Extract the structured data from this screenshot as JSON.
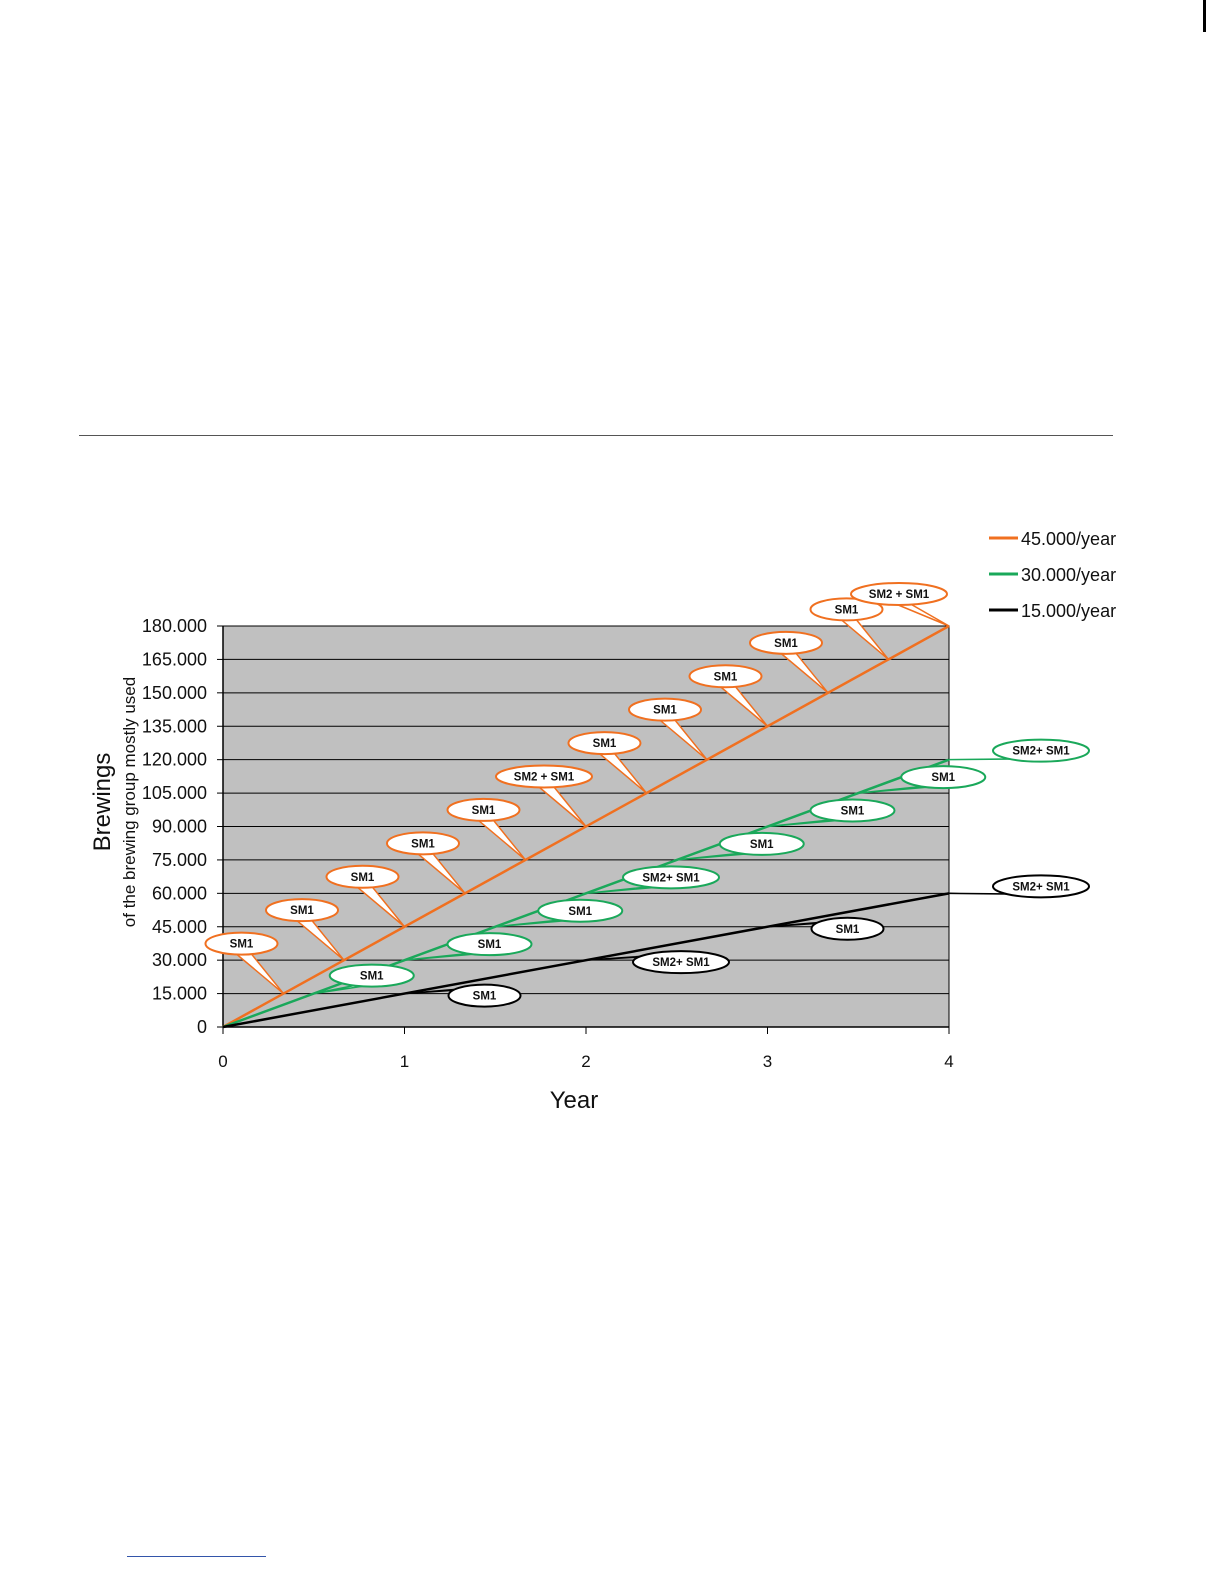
{
  "chart_data": {
    "type": "line",
    "xlabel": "Year",
    "ylabel": "Brewings",
    "ylabel_sub": "of the brewing group mostly used",
    "xlim": [
      0,
      4
    ],
    "ylim": [
      0,
      180000
    ],
    "x_ticks": [
      0,
      1,
      2,
      3,
      4
    ],
    "x_tick_labels": [
      "0",
      "1",
      "2",
      "3",
      "4"
    ],
    "y_ticks": [
      0,
      15000,
      30000,
      45000,
      60000,
      75000,
      90000,
      105000,
      120000,
      135000,
      150000,
      165000,
      180000
    ],
    "y_tick_labels": [
      "0",
      "15.000",
      "30.000",
      "45.000",
      "60.000",
      "75.000",
      "90.000",
      "105.000",
      "120.000",
      "135.000",
      "150.000",
      "165.000",
      "180.000"
    ],
    "grid": true,
    "plot_background": "#c0c0c0",
    "legend_position": "top-right",
    "series": [
      {
        "name": "45.000/year",
        "color": "#f07020",
        "x": [
          0,
          4
        ],
        "y": [
          0,
          180000
        ],
        "callouts": [
          {
            "label": "SM1",
            "x": 0.3333,
            "y": 15000
          },
          {
            "label": "SM1",
            "x": 0.6667,
            "y": 30000
          },
          {
            "label": "SM1",
            "x": 1.0,
            "y": 45000
          },
          {
            "label": "SM1",
            "x": 1.3333,
            "y": 60000
          },
          {
            "label": "SM1",
            "x": 1.6667,
            "y": 75000
          },
          {
            "label": "SM2 + SM1",
            "x": 2.0,
            "y": 90000
          },
          {
            "label": "SM1",
            "x": 2.3333,
            "y": 105000
          },
          {
            "label": "SM1",
            "x": 2.6667,
            "y": 120000
          },
          {
            "label": "SM1",
            "x": 3.0,
            "y": 135000
          },
          {
            "label": "SM1",
            "x": 3.3333,
            "y": 150000
          },
          {
            "label": "SM1",
            "x": 3.6667,
            "y": 165000
          },
          {
            "label": "SM2 + SM1",
            "x": 4.0,
            "y": 180000
          }
        ]
      },
      {
        "name": "30.000/year",
        "color": "#1aa85a",
        "x": [
          0,
          4
        ],
        "y": [
          0,
          120000
        ],
        "callouts": [
          {
            "label": "SM1",
            "x": 0.5,
            "y": 15000
          },
          {
            "label": "SM1",
            "x": 1.0,
            "y": 30000
          },
          {
            "label": "SM1",
            "x": 1.5,
            "y": 45000
          },
          {
            "label": "SM2+ SM1",
            "x": 2.0,
            "y": 60000
          },
          {
            "label": "SM1",
            "x": 2.5,
            "y": 75000
          },
          {
            "label": "SM1",
            "x": 3.0,
            "y": 90000
          },
          {
            "label": "SM1",
            "x": 3.5,
            "y": 105000
          },
          {
            "label": "SM2+ SM1",
            "x": 4.0,
            "y": 120000
          }
        ]
      },
      {
        "name": "15.000/year",
        "color": "#000000",
        "x": [
          0,
          4
        ],
        "y": [
          0,
          60000
        ],
        "callouts": [
          {
            "label": "SM1",
            "x": 1.0,
            "y": 15000
          },
          {
            "label": "SM2+ SM1",
            "x": 2.0,
            "y": 30000
          },
          {
            "label": "SM1",
            "x": 3.0,
            "y": 45000
          },
          {
            "label": "SM2+ SM1",
            "x": 4.0,
            "y": 60000
          }
        ]
      }
    ]
  }
}
